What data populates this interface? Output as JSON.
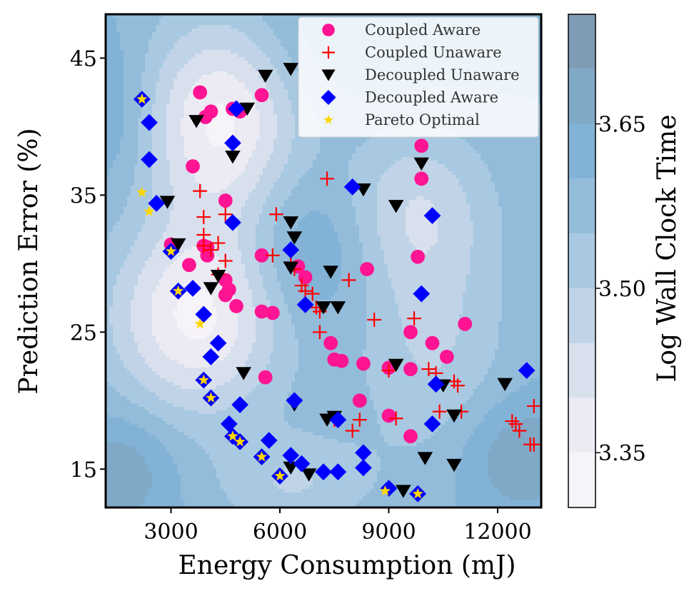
{
  "chart_data": {
    "type": "scatter",
    "xlabel": "Energy Consumption (mJ)",
    "ylabel": "Prediction Error (%)",
    "colorbar_label": "Log Wall Clock Time",
    "xlim": [
      1200,
      13200
    ],
    "ylim": [
      12.2,
      48.2
    ],
    "xticks": [
      3000,
      6000,
      9000,
      12000
    ],
    "xtick_labels": [
      "3000",
      "6000",
      "9000",
      "12000"
    ],
    "yticks": [
      15,
      25,
      35,
      45
    ],
    "ytick_labels": [
      "15",
      "25",
      "35",
      "45"
    ],
    "colorbar": {
      "range": [
        3.3,
        3.75
      ],
      "ticks": [
        3.35,
        3.5,
        3.65
      ],
      "tick_labels": [
        "3.35",
        "3.50",
        "3.65"
      ],
      "levels": [
        3.3,
        3.35,
        3.4,
        3.45,
        3.5,
        3.55,
        3.6,
        3.65,
        3.7,
        3.75
      ],
      "colors": [
        "#f7f4f9",
        "#ecebf4",
        "#d8e0ee",
        "#c0d3e7",
        "#a8c9e1",
        "#93bcda",
        "#82b3d6",
        "#80a9c8",
        "#7f9cb6"
      ]
    },
    "background_contour": {
      "base_value": 3.6,
      "bumps": [
        {
          "x": 4400,
          "y": 40.5,
          "amp": -0.26,
          "sx": 1500,
          "sy": 5.5
        },
        {
          "x": 3700,
          "y": 26.0,
          "amp": -0.26,
          "sx": 1700,
          "sy": 5.0
        },
        {
          "x": 9700,
          "y": 34.0,
          "amp": -0.14,
          "sx": 1500,
          "sy": 4.5
        },
        {
          "x": 10200,
          "y": 23.5,
          "amp": -0.1,
          "sx": 1500,
          "sy": 6.0
        },
        {
          "x": 6400,
          "y": 14.0,
          "amp": -0.1,
          "sx": 1500,
          "sy": 2.5
        },
        {
          "x": 6800,
          "y": 31.0,
          "amp": 0.09,
          "sx": 1300,
          "sy": 4.0
        },
        {
          "x": 12600,
          "y": 16.0,
          "amp": 0.1,
          "sx": 1200,
          "sy": 3.0
        },
        {
          "x": 1700,
          "y": 15.0,
          "amp": 0.09,
          "sx": 1000,
          "sy": 3.0
        },
        {
          "x": 8000,
          "y": 46.5,
          "amp": 0.05,
          "sx": 2500,
          "sy": 3.5
        },
        {
          "x": 1400,
          "y": 41.0,
          "amp": 0.06,
          "sx": 700,
          "sy": 4.0
        }
      ]
    },
    "legend": {
      "position": "top-right",
      "entries": [
        "Coupled Aware",
        "Coupled Unaware",
        "Decoupled Unaware",
        "Decoupled Aware",
        "Pareto Optimal"
      ]
    },
    "series": [
      {
        "name": "Coupled Aware",
        "marker": "circle",
        "color": "#ff1493",
        "points": [
          [
            3800,
            42.5
          ],
          [
            4100,
            41.1
          ],
          [
            3950,
            40.7
          ],
          [
            4700,
            41.3
          ],
          [
            4900,
            41.1
          ],
          [
            5500,
            42.3
          ],
          [
            3600,
            37.1
          ],
          [
            4500,
            34.6
          ],
          [
            3000,
            31.4
          ],
          [
            3900,
            31.3
          ],
          [
            4000,
            31.2
          ],
          [
            4000,
            30.6
          ],
          [
            3500,
            29.9
          ],
          [
            4500,
            28.8
          ],
          [
            4600,
            28.1
          ],
          [
            4500,
            27.7
          ],
          [
            4800,
            26.9
          ],
          [
            5500,
            26.5
          ],
          [
            5800,
            26.4
          ],
          [
            5500,
            30.6
          ],
          [
            6500,
            29.8
          ],
          [
            6700,
            29.0
          ],
          [
            8400,
            29.6
          ],
          [
            7400,
            24.2
          ],
          [
            7500,
            23.0
          ],
          [
            7700,
            22.9
          ],
          [
            8300,
            22.7
          ],
          [
            9000,
            22.4
          ],
          [
            9600,
            22.3
          ],
          [
            9600,
            25.0
          ],
          [
            10200,
            24.2
          ],
          [
            10600,
            23.2
          ],
          [
            11100,
            25.6
          ],
          [
            9800,
            30.5
          ],
          [
            9900,
            36.2
          ],
          [
            9900,
            38.6
          ],
          [
            5600,
            21.7
          ],
          [
            8200,
            20.0
          ],
          [
            9000,
            18.9
          ],
          [
            9600,
            17.4
          ]
        ]
      },
      {
        "name": "Coupled Unaware",
        "marker": "plus",
        "color": "#ff0000",
        "points": [
          [
            3800,
            35.3
          ],
          [
            3900,
            33.4
          ],
          [
            3900,
            32.1
          ],
          [
            3900,
            31.3
          ],
          [
            4100,
            31.0
          ],
          [
            4300,
            31.5
          ],
          [
            4500,
            33.6
          ],
          [
            4300,
            29.2
          ],
          [
            4500,
            30.2
          ],
          [
            5900,
            33.6
          ],
          [
            5800,
            30.6
          ],
          [
            6300,
            30.1
          ],
          [
            6400,
            29.6
          ],
          [
            6600,
            28.4
          ],
          [
            6700,
            28.0
          ],
          [
            6900,
            27.8
          ],
          [
            7000,
            26.8
          ],
          [
            7100,
            26.5
          ],
          [
            7100,
            25.0
          ],
          [
            7300,
            36.2
          ],
          [
            7900,
            28.8
          ],
          [
            8600,
            25.9
          ],
          [
            9700,
            26.0
          ],
          [
            9000,
            22.2
          ],
          [
            10100,
            22.3
          ],
          [
            10300,
            22.0
          ],
          [
            10800,
            21.4
          ],
          [
            10900,
            21.1
          ],
          [
            10400,
            19.2
          ],
          [
            11000,
            19.2
          ],
          [
            8200,
            18.6
          ],
          [
            9200,
            18.7
          ],
          [
            7500,
            18.6
          ],
          [
            8000,
            17.8
          ],
          [
            12400,
            18.5
          ],
          [
            12500,
            18.3
          ],
          [
            12600,
            17.8
          ],
          [
            12900,
            16.8
          ],
          [
            13000,
            16.8
          ],
          [
            13000,
            19.6
          ]
        ]
      },
      {
        "name": "Decoupled Unaware",
        "marker": "triangle-down",
        "color": "#000000",
        "points": [
          [
            5600,
            43.7
          ],
          [
            6300,
            44.2
          ],
          [
            5100,
            41.3
          ],
          [
            3700,
            40.4
          ],
          [
            4700,
            37.8
          ],
          [
            2900,
            34.5
          ],
          [
            3200,
            31.4
          ],
          [
            4100,
            28.2
          ],
          [
            4300,
            29.1
          ],
          [
            6300,
            33.0
          ],
          [
            6400,
            31.9
          ],
          [
            6300,
            29.7
          ],
          [
            7200,
            26.8
          ],
          [
            7600,
            26.8
          ],
          [
            7400,
            29.4
          ],
          [
            8300,
            35.4
          ],
          [
            9200,
            34.2
          ],
          [
            9900,
            37.3
          ],
          [
            5000,
            22.0
          ],
          [
            6400,
            19.7
          ],
          [
            9200,
            22.6
          ],
          [
            10500,
            21.1
          ],
          [
            12200,
            21.2
          ],
          [
            7300,
            18.6
          ],
          [
            7500,
            18.8
          ],
          [
            10800,
            18.9
          ],
          [
            6300,
            15.1
          ],
          [
            6800,
            14.6
          ],
          [
            10000,
            15.8
          ],
          [
            10800,
            15.3
          ],
          [
            9400,
            13.4
          ]
        ]
      },
      {
        "name": "Decoupled Aware",
        "marker": "diamond",
        "color": "#0000ff",
        "points": [
          [
            2200,
            42.0
          ],
          [
            2400,
            40.3
          ],
          [
            2400,
            37.6
          ],
          [
            2600,
            34.4
          ],
          [
            4800,
            41.3
          ],
          [
            4700,
            38.8
          ],
          [
            4700,
            33.0
          ],
          [
            3000,
            30.9
          ],
          [
            3200,
            28.0
          ],
          [
            3600,
            28.2
          ],
          [
            3900,
            26.3
          ],
          [
            4300,
            24.2
          ],
          [
            4100,
            23.2
          ],
          [
            3900,
            21.5
          ],
          [
            4100,
            20.2
          ],
          [
            4900,
            19.7
          ],
          [
            4600,
            18.3
          ],
          [
            4700,
            17.4
          ],
          [
            4900,
            17.0
          ],
          [
            5700,
            17.1
          ],
          [
            6300,
            31.0
          ],
          [
            6700,
            27.0
          ],
          [
            6400,
            20.0
          ],
          [
            7600,
            18.6
          ],
          [
            8000,
            35.6
          ],
          [
            9900,
            27.8
          ],
          [
            10200,
            33.5
          ],
          [
            10300,
            21.2
          ],
          [
            10200,
            18.3
          ],
          [
            12800,
            22.2
          ],
          [
            5500,
            15.9
          ],
          [
            6300,
            16.0
          ],
          [
            6600,
            15.4
          ],
          [
            7200,
            14.8
          ],
          [
            7600,
            14.8
          ],
          [
            8300,
            15.1
          ],
          [
            8300,
            16.2
          ],
          [
            9000,
            13.6
          ],
          [
            9800,
            13.2
          ],
          [
            6000,
            14.5
          ]
        ]
      },
      {
        "name": "Pareto Optimal",
        "marker": "star",
        "color": "#ffd700",
        "points": [
          [
            2200,
            42.0
          ],
          [
            2200,
            35.2
          ],
          [
            2400,
            33.8
          ],
          [
            3000,
            30.9
          ],
          [
            3200,
            28.0
          ],
          [
            3800,
            25.6
          ],
          [
            3900,
            21.5
          ],
          [
            4100,
            20.2
          ],
          [
            4700,
            17.4
          ],
          [
            4900,
            17.0
          ],
          [
            5500,
            15.9
          ],
          [
            6000,
            14.5
          ],
          [
            8900,
            13.4
          ],
          [
            9800,
            13.2
          ]
        ]
      }
    ]
  }
}
